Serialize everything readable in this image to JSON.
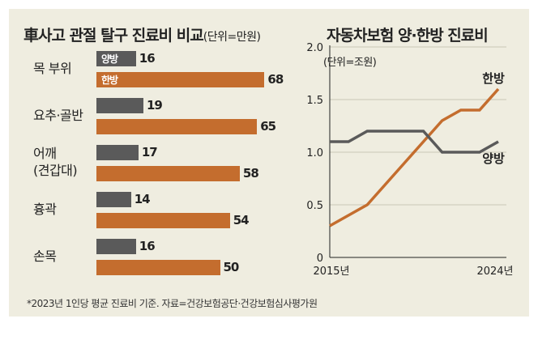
{
  "left_chart": {
    "title": "車사고 관절 탈구 진료비 비교",
    "unit": "(단위=만원)",
    "series_labels": {
      "yangbang": "양방",
      "hanbang": "한방"
    },
    "colors": {
      "yangbang": "#5a5a5a",
      "hanbang": "#c46d2e"
    },
    "rows": [
      {
        "label": "목 부위",
        "yangbang": 16,
        "hanbang": 68
      },
      {
        "label": "요추·골반",
        "yangbang": 19,
        "hanbang": 65
      },
      {
        "label": "어깨\n(견갑대)",
        "yangbang": 17,
        "hanbang": 58
      },
      {
        "label": "흉곽",
        "yangbang": 14,
        "hanbang": 54
      },
      {
        "label": "손목",
        "yangbang": 16,
        "hanbang": 50
      }
    ]
  },
  "right_chart": {
    "title": "자동차보험 양·한방 진료비",
    "unit": "(단위=조원)",
    "x_start_label": "2015년",
    "x_end_label": "2024년"
  },
  "chart_data": [
    {
      "type": "bar",
      "title": "車사고 관절 탈구 진료비 비교",
      "unit": "(단위=만원)",
      "categories": [
        "목 부위",
        "요추·골반",
        "어깨 (견갑대)",
        "흉곽",
        "손목"
      ],
      "series": [
        {
          "name": "양방",
          "values": [
            16,
            19,
            17,
            14,
            16
          ]
        },
        {
          "name": "한방",
          "values": [
            68,
            65,
            58,
            54,
            50
          ]
        }
      ],
      "orientation": "horizontal"
    },
    {
      "type": "line",
      "title": "자동차보험 양·한방 진료비",
      "unit": "(단위=조원)",
      "x": [
        2015,
        2016,
        2017,
        2018,
        2019,
        2020,
        2021,
        2022,
        2023,
        2024
      ],
      "x_tick_labels": [
        "2015년",
        "2024년"
      ],
      "y_ticks": [
        "0",
        "0.5",
        "1.0",
        "1.5",
        "2.0"
      ],
      "ylim": [
        0,
        2.0
      ],
      "series": [
        {
          "name": "한방",
          "values": [
            0.3,
            0.4,
            0.5,
            0.7,
            0.9,
            1.1,
            1.3,
            1.4,
            1.4,
            1.6
          ]
        },
        {
          "name": "양방",
          "values": [
            1.1,
            1.1,
            1.2,
            1.2,
            1.2,
            1.2,
            1.0,
            1.0,
            1.0,
            1.1
          ]
        }
      ],
      "grid": "horizontal"
    }
  ],
  "footnote": "*2023년 1인당 평균 진료비 기준. 자료=건강보험공단·건강보험심사평가원"
}
